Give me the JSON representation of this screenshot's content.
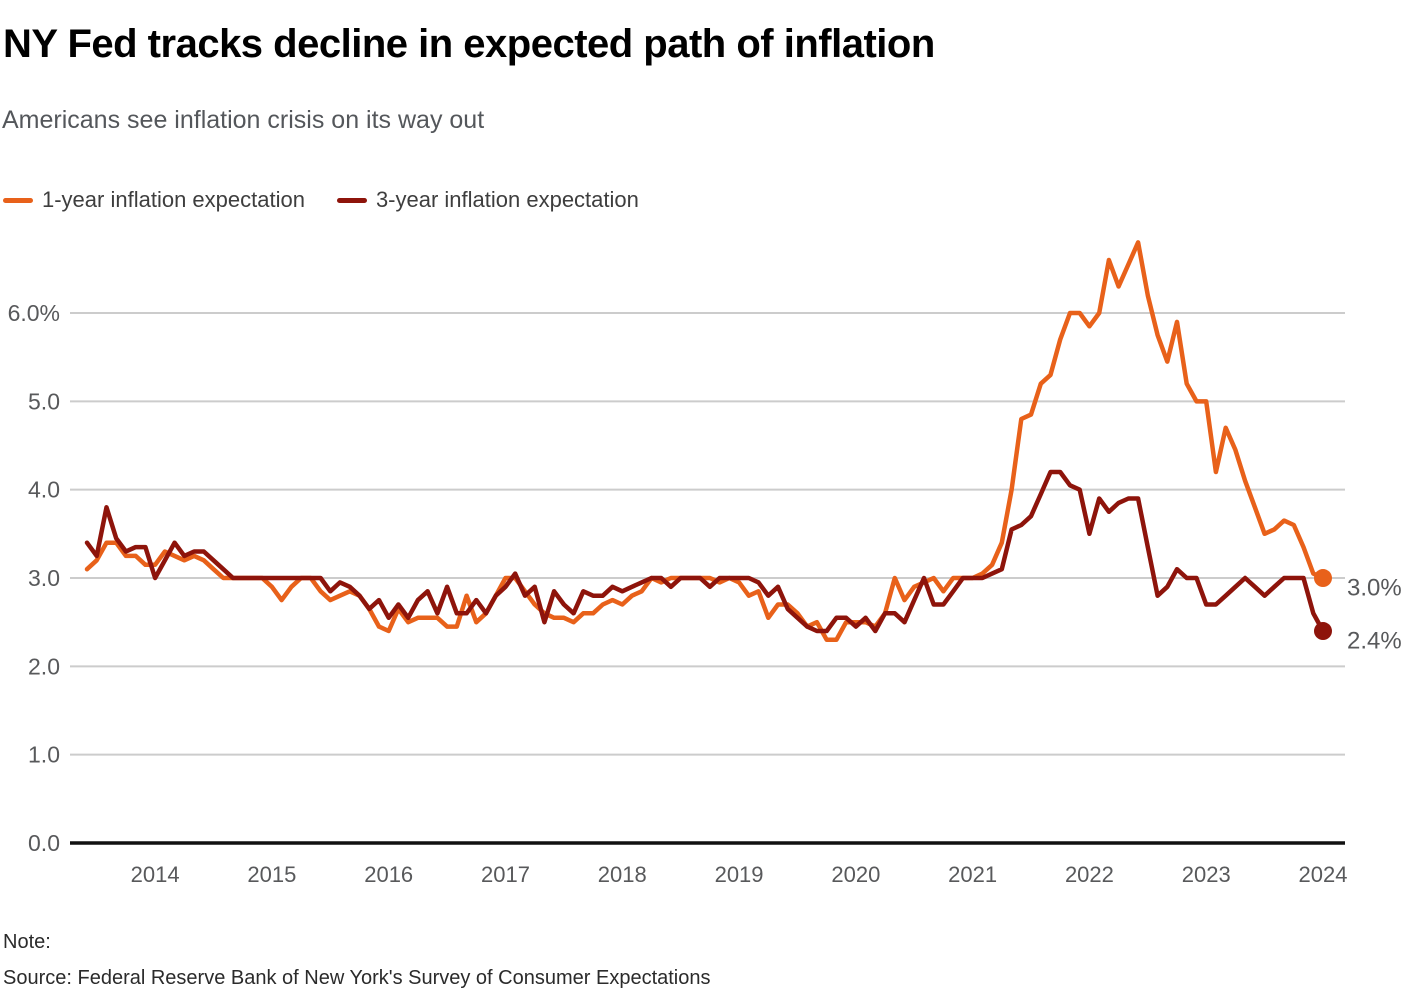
{
  "header": {
    "title": "NY Fed tracks decline in expected path of inflation",
    "subtitle": "Americans see inflation crisis on its way out"
  },
  "legend": [
    {
      "label": "1-year inflation expectation",
      "color": "#E8611A"
    },
    {
      "label": "3-year inflation expectation",
      "color": "#8E140B"
    }
  ],
  "footer": {
    "note_label": "Note:",
    "source": "Source: Federal Reserve Bank of New York's Survey of Consumer Expectations"
  },
  "chart_data": {
    "type": "line",
    "title": "NY Fed tracks decline in expected path of inflation",
    "subtitle": "Americans see inflation crisis on its way out",
    "x_interval": "monthly",
    "x_start": "2013-06",
    "x_end": "2024-01",
    "x_tick_labels": [
      "2014",
      "2015",
      "2016",
      "2017",
      "2018",
      "2019",
      "2020",
      "2021",
      "2022",
      "2023",
      "2024"
    ],
    "grid": "horizontal",
    "legend_position": "top-left",
    "y_axis": {
      "range": [
        0,
        6.9
      ],
      "ticks": [
        {
          "value": 6,
          "label": "6.0%"
        },
        {
          "value": 5,
          "label": "5.0"
        },
        {
          "value": 4,
          "label": "4.0"
        },
        {
          "value": 3,
          "label": "3.0"
        },
        {
          "value": 2,
          "label": "2.0"
        },
        {
          "value": 1,
          "label": "1.0"
        },
        {
          "value": 0,
          "label": "0.0"
        }
      ]
    },
    "series": [
      {
        "name": "1-year inflation expectation",
        "color": "#E8611A",
        "end_label": "3.0%",
        "last_value": 3.0,
        "values": [
          3.1,
          3.2,
          3.4,
          3.4,
          3.25,
          3.25,
          3.15,
          3.15,
          3.3,
          3.25,
          3.2,
          3.25,
          3.2,
          3.1,
          3.0,
          3.0,
          3.0,
          3.0,
          3.0,
          2.9,
          2.75,
          2.9,
          3.0,
          3.0,
          2.85,
          2.75,
          2.8,
          2.85,
          2.8,
          2.65,
          2.45,
          2.4,
          2.65,
          2.5,
          2.55,
          2.55,
          2.55,
          2.45,
          2.45,
          2.8,
          2.5,
          2.6,
          2.8,
          3.0,
          3.0,
          2.85,
          2.7,
          2.6,
          2.55,
          2.55,
          2.5,
          2.6,
          2.6,
          2.7,
          2.75,
          2.7,
          2.8,
          2.85,
          3.0,
          2.95,
          3.0,
          3.0,
          3.0,
          3.0,
          3.0,
          2.95,
          3.0,
          2.95,
          2.8,
          2.85,
          2.55,
          2.7,
          2.7,
          2.6,
          2.45,
          2.5,
          2.3,
          2.3,
          2.5,
          2.5,
          2.5,
          2.45,
          2.6,
          3.0,
          2.75,
          2.9,
          2.95,
          3.0,
          2.85,
          3.0,
          3.0,
          3.0,
          3.05,
          3.15,
          3.4,
          4.0,
          4.8,
          4.85,
          5.2,
          5.3,
          5.7,
          6.0,
          6.0,
          5.85,
          6.0,
          6.6,
          6.3,
          6.55,
          6.8,
          6.2,
          5.75,
          5.45,
          5.9,
          5.2,
          5.0,
          5.0,
          4.2,
          4.7,
          4.45,
          4.1,
          3.8,
          3.5,
          3.55,
          3.65,
          3.6,
          3.35,
          3.05,
          3.0
        ]
      },
      {
        "name": "3-year inflation expectation",
        "color": "#8E140B",
        "end_label": "2.4%",
        "last_value": 2.4,
        "values": [
          3.4,
          3.25,
          3.8,
          3.45,
          3.3,
          3.35,
          3.35,
          3.0,
          3.2,
          3.4,
          3.25,
          3.3,
          3.3,
          3.2,
          3.1,
          3.0,
          3.0,
          3.0,
          3.0,
          3.0,
          3.0,
          3.0,
          3.0,
          3.0,
          3.0,
          2.85,
          2.95,
          2.9,
          2.8,
          2.65,
          2.75,
          2.55,
          2.7,
          2.55,
          2.75,
          2.85,
          2.6,
          2.9,
          2.6,
          2.6,
          2.75,
          2.6,
          2.8,
          2.9,
          3.05,
          2.8,
          2.9,
          2.5,
          2.85,
          2.7,
          2.6,
          2.85,
          2.8,
          2.8,
          2.9,
          2.85,
          2.9,
          2.95,
          3.0,
          3.0,
          2.9,
          3.0,
          3.0,
          3.0,
          2.9,
          3.0,
          3.0,
          3.0,
          3.0,
          2.95,
          2.8,
          2.9,
          2.65,
          2.55,
          2.45,
          2.4,
          2.4,
          2.55,
          2.55,
          2.45,
          2.55,
          2.4,
          2.6,
          2.6,
          2.5,
          2.75,
          3.0,
          2.7,
          2.7,
          2.85,
          3.0,
          3.0,
          3.0,
          3.05,
          3.1,
          3.55,
          3.6,
          3.7,
          3.95,
          4.2,
          4.2,
          4.05,
          4.0,
          3.5,
          3.9,
          3.75,
          3.85,
          3.9,
          3.9,
          3.35,
          2.8,
          2.9,
          3.1,
          3.0,
          3.0,
          2.7,
          2.7,
          2.8,
          2.9,
          3.0,
          2.9,
          2.8,
          2.9,
          3.0,
          3.0,
          3.0,
          2.6,
          2.4
        ]
      }
    ],
    "colors": {
      "grid": "#CCCCCC",
      "axis": "#111111",
      "tick_text": "#58595B",
      "end_label_text": "#58595B"
    }
  }
}
